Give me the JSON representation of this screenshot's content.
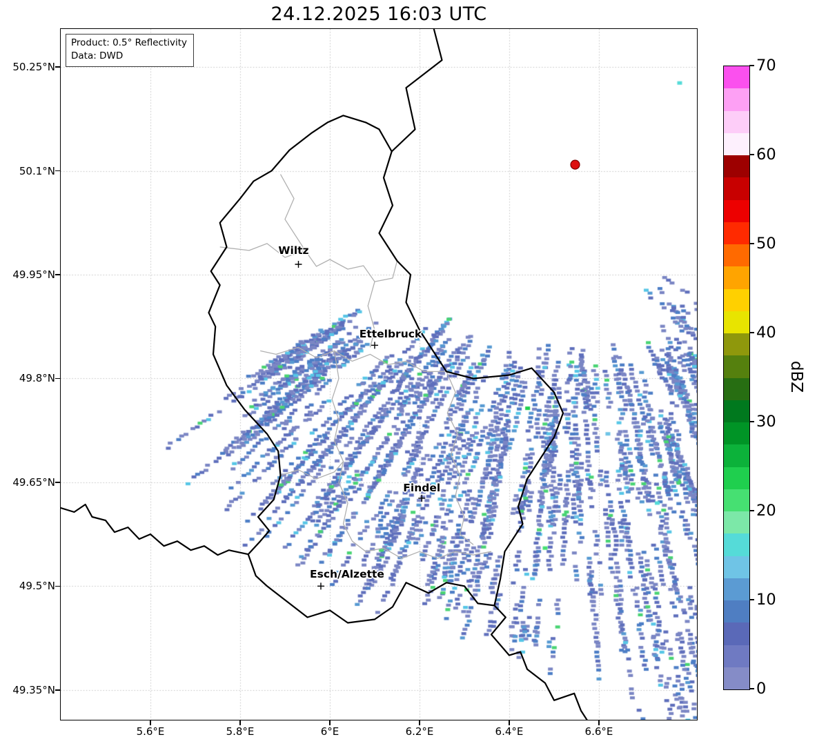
{
  "title": "24.12.2025 16:03 UTC",
  "info_box": {
    "line1": "Product: 0.5° Reflectivity",
    "line2": "Data: DWD"
  },
  "map": {
    "extent": {
      "lon_min": 5.4,
      "lon_max": 6.8185,
      "lat_min": 49.3069,
      "lat_max": 50.305
    },
    "lat_ticks": [
      {
        "label": "50.25°N",
        "deg": 50.25
      },
      {
        "label": "50.1°N",
        "deg": 50.1
      },
      {
        "label": "49.95°N",
        "deg": 49.95
      },
      {
        "label": "49.8°N",
        "deg": 49.8
      },
      {
        "label": "49.65°N",
        "deg": 49.65
      },
      {
        "label": "49.5°N",
        "deg": 49.5
      },
      {
        "label": "49.35°N",
        "deg": 49.35
      }
    ],
    "lon_ticks": [
      {
        "label": "5.6°E",
        "deg": 5.6
      },
      {
        "label": "5.8°E",
        "deg": 5.8
      },
      {
        "label": "6°E",
        "deg": 6.0
      },
      {
        "label": "6.2°E",
        "deg": 6.2
      },
      {
        "label": "6.4°E",
        "deg": 6.4
      },
      {
        "label": "6.6°E",
        "deg": 6.6
      }
    ],
    "cities": [
      {
        "name": "Wiltz",
        "lon": 5.93,
        "lat": 49.965,
        "label_offset": [
          -7,
          -20
        ]
      },
      {
        "name": "Ettelbruck",
        "lon": 6.1,
        "lat": 49.848,
        "label_offset": [
          23,
          -16
        ]
      },
      {
        "name": "Findel",
        "lon": 6.205,
        "lat": 49.627,
        "label_offset": [
          0,
          -15
        ]
      },
      {
        "name": "Esch/Alzette",
        "lon": 5.98,
        "lat": 49.5,
        "label_offset": [
          38,
          -17
        ]
      }
    ],
    "radar_site": {
      "lon": 6.547,
      "lat": 50.109,
      "color": "#dd1111",
      "edge": "#7a0000",
      "radius": 6.5
    },
    "grid_color": "#c0c0c0",
    "border_color_country": "#000000",
    "border_color_regional": "#b0b0b0"
  },
  "borders": {
    "country": [
      {
        "name": "luxembourg-outline",
        "closed": true,
        "pts": [
          [
            6.03,
            50.18
          ],
          [
            6.08,
            50.17
          ],
          [
            6.11,
            50.16
          ],
          [
            6.138,
            50.128
          ],
          [
            6.12,
            50.09
          ],
          [
            6.14,
            50.05
          ],
          [
            6.11,
            50.01
          ],
          [
            6.15,
            49.97
          ],
          [
            6.18,
            49.95
          ],
          [
            6.17,
            49.91
          ],
          [
            6.2,
            49.87
          ],
          [
            6.23,
            49.84
          ],
          [
            6.26,
            49.81
          ],
          [
            6.32,
            49.8
          ],
          [
            6.4,
            49.805
          ],
          [
            6.45,
            49.815
          ],
          [
            6.5,
            49.78
          ],
          [
            6.52,
            49.75
          ],
          [
            6.5,
            49.715
          ],
          [
            6.44,
            49.655
          ],
          [
            6.42,
            49.615
          ],
          [
            6.43,
            49.59
          ],
          [
            6.39,
            49.55
          ],
          [
            6.38,
            49.51
          ],
          [
            6.367,
            49.472
          ],
          [
            6.33,
            49.475
          ],
          [
            6.3,
            49.5
          ],
          [
            6.26,
            49.505
          ],
          [
            6.22,
            49.49
          ],
          [
            6.17,
            49.505
          ],
          [
            6.14,
            49.47
          ],
          [
            6.1,
            49.452
          ],
          [
            6.04,
            49.447
          ],
          [
            6.0,
            49.465
          ],
          [
            5.95,
            49.455
          ],
          [
            5.9,
            49.48
          ],
          [
            5.86,
            49.5
          ],
          [
            5.835,
            49.515
          ],
          [
            5.818,
            49.546
          ],
          [
            5.845,
            49.565
          ],
          [
            5.865,
            49.58
          ],
          [
            5.84,
            49.6
          ],
          [
            5.875,
            49.625
          ],
          [
            5.89,
            49.66
          ],
          [
            5.885,
            49.695
          ],
          [
            5.86,
            49.72
          ],
          [
            5.81,
            49.755
          ],
          [
            5.77,
            49.79
          ],
          [
            5.74,
            49.835
          ],
          [
            5.745,
            49.875
          ],
          [
            5.73,
            49.895
          ],
          [
            5.755,
            49.935
          ],
          [
            5.735,
            49.955
          ],
          [
            5.77,
            49.99
          ],
          [
            5.755,
            50.025
          ],
          [
            5.8,
            50.06
          ],
          [
            5.83,
            50.085
          ],
          [
            5.87,
            50.1
          ],
          [
            5.91,
            50.13
          ],
          [
            5.96,
            50.155
          ],
          [
            5.995,
            50.17
          ]
        ]
      },
      {
        "name": "belgium-germany-border",
        "closed": false,
        "pts": [
          [
            6.138,
            50.128
          ],
          [
            6.19,
            50.16
          ],
          [
            6.17,
            50.22
          ],
          [
            6.25,
            50.26
          ],
          [
            6.23,
            50.31
          ]
        ]
      },
      {
        "name": "france-germany-border",
        "closed": false,
        "pts": [
          [
            6.367,
            49.472
          ],
          [
            6.392,
            49.455
          ],
          [
            6.36,
            49.43
          ],
          [
            6.4,
            49.4
          ],
          [
            6.425,
            49.405
          ],
          [
            6.44,
            49.38
          ],
          [
            6.48,
            49.36
          ],
          [
            6.5,
            49.335
          ],
          [
            6.545,
            49.345
          ],
          [
            6.56,
            49.32
          ],
          [
            6.58,
            49.3
          ]
        ]
      },
      {
        "name": "belgium-france-border",
        "closed": false,
        "pts": [
          [
            5.395,
            49.614
          ],
          [
            5.43,
            49.607
          ],
          [
            5.455,
            49.618
          ],
          [
            5.47,
            49.6
          ],
          [
            5.5,
            49.595
          ],
          [
            5.52,
            49.578
          ],
          [
            5.55,
            49.585
          ],
          [
            5.575,
            49.568
          ],
          [
            5.6,
            49.575
          ],
          [
            5.63,
            49.558
          ],
          [
            5.66,
            49.565
          ],
          [
            5.69,
            49.552
          ],
          [
            5.72,
            49.558
          ],
          [
            5.75,
            49.545
          ],
          [
            5.775,
            49.552
          ],
          [
            5.818,
            49.546
          ]
        ]
      }
    ],
    "regional": [
      {
        "name": "district-border-north",
        "pts": [
          [
            5.755,
            49.99
          ],
          [
            5.82,
            49.985
          ],
          [
            5.86,
            49.995
          ],
          [
            5.9,
            49.975
          ],
          [
            5.945,
            49.985
          ],
          [
            5.97,
            49.962
          ],
          [
            6.0,
            49.972
          ],
          [
            6.04,
            49.958
          ],
          [
            6.075,
            49.963
          ],
          [
            6.1,
            49.94
          ],
          [
            6.14,
            49.945
          ],
          [
            6.15,
            49.97
          ]
        ]
      },
      {
        "name": "district-border-clervaux",
        "pts": [
          [
            5.89,
            50.095
          ],
          [
            5.92,
            50.06
          ],
          [
            5.9,
            50.03
          ],
          [
            5.93,
            50.0
          ],
          [
            5.945,
            49.985
          ]
        ]
      },
      {
        "name": "district-border-middle",
        "pts": [
          [
            5.845,
            49.84
          ],
          [
            5.88,
            49.835
          ],
          [
            5.93,
            49.845
          ],
          [
            5.97,
            49.83
          ],
          [
            6.01,
            49.84
          ],
          [
            6.05,
            49.825
          ],
          [
            6.09,
            49.835
          ],
          [
            6.13,
            49.82
          ],
          [
            6.17,
            49.825
          ],
          [
            6.21,
            49.81
          ],
          [
            6.26,
            49.81
          ]
        ]
      },
      {
        "name": "district-border-center-south",
        "pts": [
          [
            6.01,
            49.84
          ],
          [
            6.02,
            49.8
          ],
          [
            6.005,
            49.77
          ],
          [
            6.02,
            49.74
          ],
          [
            6.01,
            49.71
          ],
          [
            6.03,
            49.68
          ],
          [
            6.02,
            49.65
          ],
          [
            6.04,
            49.62
          ],
          [
            6.03,
            49.59
          ],
          [
            6.05,
            49.565
          ],
          [
            6.08,
            49.55
          ],
          [
            6.12,
            49.555
          ],
          [
            6.16,
            49.54
          ],
          [
            6.2,
            49.55
          ],
          [
            6.24,
            49.54
          ],
          [
            6.28,
            49.55
          ],
          [
            6.32,
            49.545
          ],
          [
            6.36,
            49.55
          ]
        ]
      },
      {
        "name": "district-border-east",
        "pts": [
          [
            6.26,
            49.81
          ],
          [
            6.28,
            49.78
          ],
          [
            6.262,
            49.75
          ],
          [
            6.285,
            49.72
          ],
          [
            6.27,
            49.69
          ],
          [
            6.29,
            49.66
          ],
          [
            6.28,
            49.63
          ],
          [
            6.3,
            49.6
          ],
          [
            6.29,
            49.575
          ],
          [
            6.32,
            49.56
          ]
        ]
      },
      {
        "name": "district-border-vianden",
        "pts": [
          [
            6.1,
            49.94
          ],
          [
            6.085,
            49.905
          ],
          [
            6.1,
            49.87
          ],
          [
            6.09,
            49.845
          ]
        ]
      },
      {
        "name": "district-border-west",
        "pts": [
          [
            5.89,
            49.66
          ],
          [
            5.93,
            49.668
          ],
          [
            5.97,
            49.655
          ],
          [
            6.01,
            49.665
          ],
          [
            6.03,
            49.68
          ]
        ]
      }
    ]
  },
  "colorbar": {
    "label": "dBZ",
    "min": 0,
    "max": 70,
    "ticks": [
      0,
      10,
      20,
      30,
      40,
      50,
      60,
      70
    ],
    "colors_bottom_to_top": [
      "#858cc7",
      "#6f7ac2",
      "#5a69b8",
      "#4f7ec2",
      "#5b9bd3",
      "#6fc4e6",
      "#55dbd8",
      "#7ce8a8",
      "#46e072",
      "#1fcf4e",
      "#0cb23a",
      "#009426",
      "#00791e",
      "#276e12",
      "#55800e",
      "#8f980c",
      "#e8e400",
      "#ffd000",
      "#ffa400",
      "#ff6a00",
      "#ff2a00",
      "#ed0000",
      "#c80000",
      "#9d0000",
      "#fdf0fd",
      "#fdcdf8",
      "#fda0f4",
      "#fb50ee"
    ]
  },
  "echo_field": {
    "seed": 1337,
    "cell": {
      "w": 7,
      "h": 4.3
    },
    "colors": [
      [
        "#7b86c4",
        0.4
      ],
      [
        "#5f6fbc",
        0.28
      ],
      [
        "#4d7ec6",
        0.17
      ],
      [
        "#579ad2",
        0.08
      ],
      [
        "#57c6e6",
        0.045
      ],
      [
        "#49d473",
        0.025
      ]
    ],
    "bands": [
      {
        "phi": [
          57,
          100
        ],
        "r": [
          260,
          580
        ],
        "streaks": 170,
        "len": [
          25,
          110
        ],
        "density": 0.8
      },
      {
        "phi": [
          70,
          88
        ],
        "r": [
          560,
          790
        ],
        "streaks": 55,
        "len": [
          25,
          90
        ],
        "density": 0.7
      },
      {
        "phi": [
          103,
          133
        ],
        "r": [
          280,
          600
        ],
        "streaks": 115,
        "len": [
          30,
          150
        ],
        "density": 0.78
      },
      {
        "phi": [
          130,
          147
        ],
        "r": [
          360,
          580
        ],
        "streaks": 60,
        "len": [
          40,
          180
        ],
        "density": 0.75
      },
      {
        "phi": [
          48,
          62
        ],
        "r": [
          200,
          330
        ],
        "streaks": 18,
        "len": [
          15,
          60
        ],
        "density": 0.6
      },
      {
        "phi": [
          92,
          105
        ],
        "r": [
          560,
          690
        ],
        "streaks": 25,
        "len": [
          20,
          70
        ],
        "density": 0.6
      }
    ],
    "spots": [
      {
        "lon": 6.78,
        "lat": 50.227,
        "color": "#55dbd8"
      },
      {
        "lon": 6.441,
        "lat": 49.757,
        "color": "#1fcf4e"
      },
      {
        "lon": 6.62,
        "lat": 49.72,
        "color": "#6fc4e6"
      },
      {
        "lon": 6.73,
        "lat": 49.62,
        "color": "#55dbd8"
      },
      {
        "lon": 6.55,
        "lat": 49.6,
        "color": "#6fc4e6"
      },
      {
        "lon": 6.48,
        "lat": 49.555,
        "color": "#46e072"
      }
    ]
  },
  "chart_data": {
    "type": "heatmap",
    "title": "24.12.2025 16:03 UTC",
    "product": "0.5° Reflectivity",
    "source": "DWD",
    "unit": "dBZ",
    "value_range": [
      0,
      70
    ],
    "colorbar_ticks": [
      0,
      10,
      20,
      30,
      40,
      50,
      60,
      70
    ],
    "x_axis": {
      "ticks": [
        "5.6°E",
        "5.8°E",
        "6°E",
        "6.2°E",
        "6.4°E",
        "6.6°E"
      ],
      "range_deg": [
        5.4,
        6.82
      ]
    },
    "y_axis": {
      "ticks": [
        "50.25°N",
        "50.1°N",
        "49.95°N",
        "49.8°N",
        "49.65°N",
        "49.5°N",
        "49.35°N"
      ],
      "range_deg": [
        49.31,
        50.305
      ]
    },
    "radar_site": {
      "lon": 6.547,
      "lat": 50.109
    },
    "summary": "Scattered light precipitation echoes (mostly 0-15 dBZ, isolated 20-25 dBZ cells) over eastern Luxembourg and western Germany, arranged in radial streaks southwest of the radar site; northwest half of the domain echo-free."
  }
}
